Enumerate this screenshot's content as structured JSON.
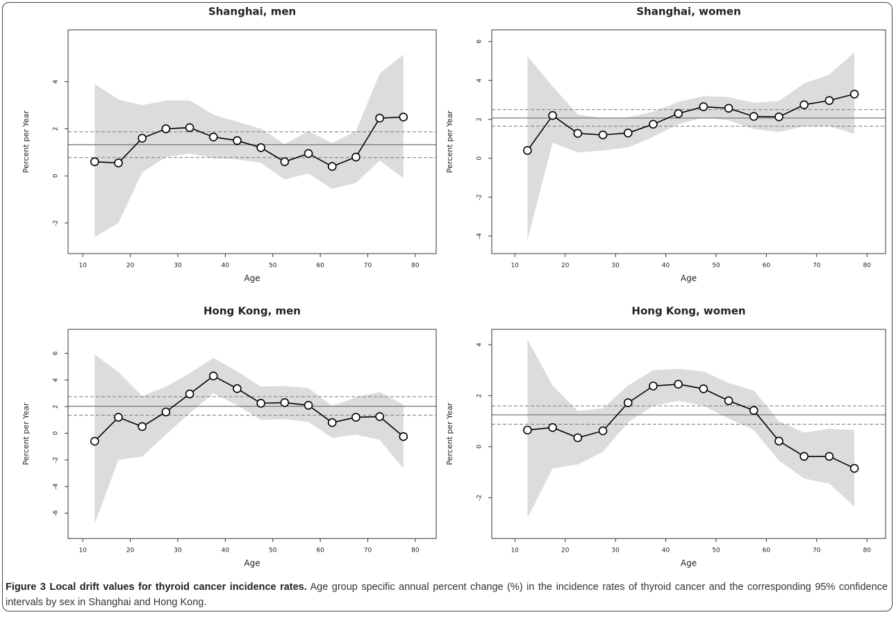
{
  "chart_data": [
    {
      "type": "line",
      "title": "Shanghai, men",
      "xlabel": "Age",
      "ylabel": "Percent per Year",
      "x": [
        12.5,
        17.5,
        22.5,
        27.5,
        32.5,
        37.5,
        42.5,
        47.5,
        52.5,
        57.5,
        62.5,
        67.5,
        72.5,
        77.5
      ],
      "values": [
        0.6,
        0.55,
        1.6,
        2.0,
        2.05,
        1.65,
        1.5,
        1.2,
        0.6,
        0.95,
        0.4,
        0.8,
        2.45,
        2.5
      ],
      "ci_upper": [
        3.9,
        3.25,
        3.0,
        3.2,
        3.2,
        2.6,
        2.3,
        2.0,
        1.35,
        1.9,
        1.4,
        1.9,
        4.35,
        5.15
      ],
      "ci_lower": [
        -2.6,
        -2.0,
        0.15,
        0.8,
        0.95,
        0.75,
        0.7,
        0.55,
        -0.15,
        0.1,
        -0.55,
        -0.3,
        0.65,
        -0.1
      ],
      "net_drift": 1.32,
      "net_drift_ci": [
        0.78,
        1.87
      ],
      "xlim": [
        6.9,
        84.4
      ],
      "ylim": [
        -3.3,
        6.2
      ],
      "xticks": [
        10,
        20,
        30,
        40,
        50,
        60,
        70,
        80
      ],
      "yticks": [
        -2,
        0,
        2,
        4
      ],
      "color": "#000000",
      "band_color": "#dcdcdc",
      "reference_color": "#777777"
    },
    {
      "type": "line",
      "title": "Shanghai, women",
      "xlabel": "Age",
      "ylabel": "Percent per Year",
      "x": [
        12.5,
        17.5,
        22.5,
        27.5,
        32.5,
        37.5,
        42.5,
        47.5,
        52.5,
        57.5,
        62.5,
        67.5,
        72.5,
        77.5
      ],
      "values": [
        0.4,
        2.2,
        1.28,
        1.2,
        1.3,
        1.75,
        2.3,
        2.65,
        2.57,
        2.15,
        2.13,
        2.75,
        2.97,
        3.3
      ],
      "ci_upper": [
        5.25,
        3.7,
        2.25,
        2.05,
        2.1,
        2.4,
        2.9,
        3.2,
        3.15,
        2.85,
        2.95,
        3.85,
        4.3,
        5.45
      ],
      "ci_lower": [
        -4.2,
        0.8,
        0.3,
        0.4,
        0.55,
        1.1,
        1.75,
        2.1,
        1.95,
        1.5,
        1.35,
        1.65,
        1.65,
        1.25
      ],
      "net_drift": 2.07,
      "net_drift_ci": [
        1.65,
        2.5
      ],
      "xlim": [
        5.4,
        83.7
      ],
      "ylim": [
        -4.9,
        6.6
      ],
      "xticks": [
        10,
        20,
        30,
        40,
        50,
        60,
        70,
        80
      ],
      "yticks": [
        -4,
        -2,
        0,
        2,
        4,
        6
      ],
      "color": "#000000",
      "band_color": "#dcdcdc",
      "reference_color": "#777777"
    },
    {
      "type": "line",
      "title": "Hong Kong, men",
      "xlabel": "Age",
      "ylabel": "Percent per Year",
      "x": [
        12.5,
        17.5,
        22.5,
        27.5,
        32.5,
        37.5,
        42.5,
        47.5,
        52.5,
        57.5,
        62.5,
        67.5,
        72.5,
        77.5
      ],
      "values": [
        -0.6,
        1.2,
        0.5,
        1.6,
        2.95,
        4.3,
        3.35,
        2.25,
        2.3,
        2.1,
        0.8,
        1.2,
        1.25,
        -0.25
      ],
      "ci_upper": [
        5.9,
        4.6,
        2.8,
        3.5,
        4.5,
        5.65,
        4.65,
        3.5,
        3.55,
        3.4,
        2.05,
        2.7,
        3.1,
        2.15
      ],
      "ci_lower": [
        -6.8,
        -2.0,
        -1.75,
        -0.1,
        1.5,
        3.0,
        2.1,
        1.0,
        1.05,
        0.85,
        -0.35,
        -0.1,
        -0.5,
        -2.65
      ],
      "net_drift": 2.03,
      "net_drift_ci": [
        1.35,
        2.75
      ],
      "xlim": [
        6.9,
        84.4
      ],
      "ylim": [
        -7.9,
        7.8
      ],
      "xticks": [
        10,
        20,
        30,
        40,
        50,
        60,
        70,
        80
      ],
      "yticks": [
        -6,
        -4,
        -2,
        0,
        2,
        4,
        6
      ],
      "color": "#000000",
      "band_color": "#dcdcdc",
      "reference_color": "#777777"
    },
    {
      "type": "line",
      "title": "Hong Kong, women",
      "xlabel": "Age",
      "ylabel": "Percent per Year",
      "x": [
        12.5,
        17.5,
        22.5,
        27.5,
        32.5,
        37.5,
        42.5,
        47.5,
        52.5,
        57.5,
        62.5,
        67.5,
        72.5,
        77.5
      ],
      "values": [
        0.65,
        0.75,
        0.35,
        0.62,
        1.72,
        2.38,
        2.45,
        2.27,
        1.8,
        1.42,
        0.22,
        -0.38,
        -0.38,
        -0.85
      ],
      "ci_upper": [
        4.2,
        2.4,
        1.4,
        1.5,
        2.4,
        3.0,
        3.05,
        2.95,
        2.5,
        2.2,
        1.0,
        0.55,
        0.7,
        0.65
      ],
      "ci_lower": [
        -2.8,
        -0.85,
        -0.7,
        -0.2,
        0.95,
        1.6,
        1.8,
        1.6,
        1.1,
        0.65,
        -0.55,
        -1.25,
        -1.45,
        -2.35
      ],
      "net_drift": 1.25,
      "net_drift_ci": [
        0.88,
        1.6
      ],
      "xlim": [
        5.4,
        83.7
      ],
      "ylim": [
        -3.6,
        4.6
      ],
      "xticks": [
        10,
        20,
        30,
        40,
        50,
        60,
        70,
        80
      ],
      "yticks": [
        -2,
        0,
        2,
        4
      ],
      "color": "#000000",
      "band_color": "#dcdcdc",
      "reference_color": "#777777"
    }
  ],
  "caption": {
    "label": "Figure 3 Local drift values for thyroid cancer incidence rates.",
    "text": "Age group specific annual percent change (%) in the incidence rates of thyroid cancer and the corresponding 95% confidence intervals by sex in Shanghai and Hong Kong."
  }
}
